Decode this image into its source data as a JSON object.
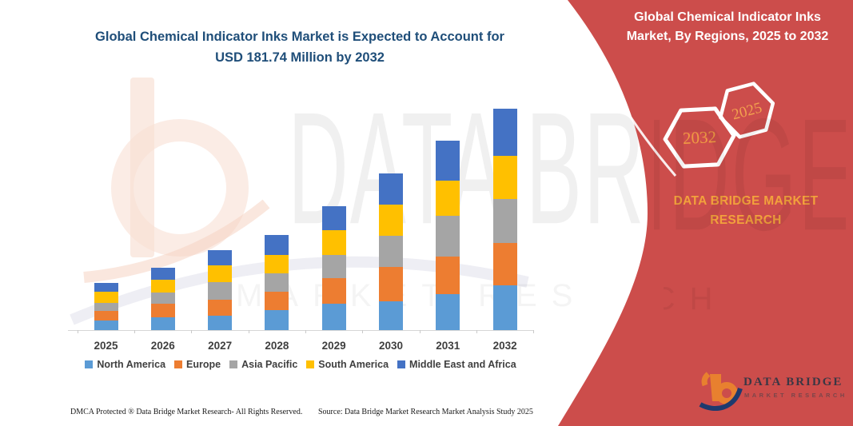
{
  "page": {
    "background": "#FFFFFF"
  },
  "header": {
    "title": "Global Chemical Indicator Inks Market is Expected to Account for USD 181.74 Million by 2032",
    "title_color": "#1F4E79"
  },
  "region_panel": {
    "title": "Global Chemical Indicator Inks Market, By Regions, 2025 to 2032",
    "background_color": "#CC4D4B",
    "hexagons": [
      {
        "label": "2032",
        "text_color": "#EF9A43"
      },
      {
        "label": "2025",
        "text_color": "#F2A14E"
      }
    ],
    "brand_text": "DATA BRIDGE MARKET RESEARCH",
    "brand_text_color": "#F2A13C",
    "logo": {
      "brand": "DATA BRIDGE",
      "tagline": "MARKET RESEARCH"
    }
  },
  "watermark": {
    "brand": "DATA BRIDGE",
    "tagline": "MARKET RESEARCH"
  },
  "chart_data": {
    "type": "bar",
    "stacked": true,
    "title": "Global Chemical Indicator Inks Market is Expected to Account for USD 181.74 Million by 2032",
    "unit": "USD Million",
    "categories": [
      "2025",
      "2026",
      "2027",
      "2028",
      "2029",
      "2030",
      "2031",
      "2032"
    ],
    "series": [
      {
        "name": "North America",
        "color": "#5B9BD5",
        "values": [
          7.9,
          10.5,
          11.8,
          16.4,
          21.7,
          23.6,
          29.5,
          37.0
        ]
      },
      {
        "name": "Europe",
        "color": "#ED7D31",
        "values": [
          7.9,
          11.2,
          13.1,
          15.1,
          21.0,
          28.2,
          30.8,
          34.5
        ]
      },
      {
        "name": "Asia Pacific",
        "color": "#A5A5A5",
        "values": [
          6.6,
          9.2,
          14.4,
          15.1,
          19.0,
          25.6,
          33.5,
          36.2
        ]
      },
      {
        "name": "South America",
        "color": "#FFC000",
        "values": [
          9.2,
          10.5,
          13.8,
          15.1,
          20.3,
          25.6,
          28.9,
          35.6
        ]
      },
      {
        "name": "Middle East and Africa",
        "color": "#4472C4",
        "values": [
          7.2,
          9.8,
          12.5,
          16.4,
          19.7,
          25.6,
          32.8,
          38.4
        ]
      }
    ],
    "totals_estimated": [
      38.8,
      51.2,
      65.6,
      78.1,
      101.7,
      128.6,
      155.5,
      181.7
    ],
    "highlight_total_2032": 181.74,
    "y_axis_visible": false,
    "gridlines": false,
    "legend_position": "bottom",
    "x_label_color": "#3F3F3F"
  },
  "footer": {
    "dmca": "DMCA Protected ® Data Bridge Market Research-  All Rights Reserved.",
    "source": "Source: Data Bridge Market Research  Market Analysis Study 2025"
  }
}
